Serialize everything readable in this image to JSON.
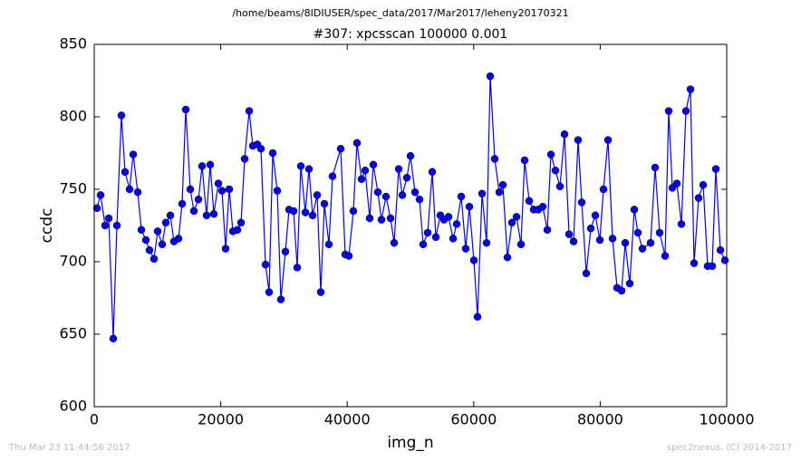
{
  "chart_data": {
    "type": "line",
    "suptitle": "/home/beams/8IDIUSER/spec_data/2017/Mar2017/leheny20170321",
    "title": "#307: xpcsscan 100000 0.001",
    "x_label": "img_n",
    "y_label": "ccdc",
    "footer_left": "Thu Mar 23 11:44:56 2017",
    "footer_right": "spec2nexus, (C) 2014-2017",
    "xlim": [
      0,
      100000
    ],
    "ylim": [
      600,
      850
    ],
    "xticks": [
      0,
      20000,
      40000,
      60000,
      80000,
      100000
    ],
    "yticks": [
      600,
      650,
      700,
      750,
      800,
      850
    ],
    "grid": false,
    "series": [
      {
        "name": "ccdc",
        "color": "#0000ff",
        "x": [
          430,
          1003,
          1719,
          2292,
          3009,
          3582,
          4298,
          4871,
          5587,
          6160,
          6877,
          7450,
          8166,
          8739,
          9456,
          10029,
          10745,
          11318,
          12034,
          12607,
          13324,
          13897,
          14470,
          15186,
          15759,
          16476,
          17049,
          17765,
          18338,
          18911,
          19628,
          20201,
          20774,
          21347,
          21920,
          22636,
          23209,
          23782,
          24499,
          25072,
          25788,
          26361,
          27077,
          27650,
          28223,
          28940,
          29513,
          30229,
          30802,
          31519,
          32092,
          32665,
          33381,
          33954,
          34527,
          35244,
          35817,
          36390,
          37106,
          37679,
          38968,
          39685,
          40258,
          40974,
          41547,
          42264,
          42837,
          43553,
          44126,
          44843,
          45416,
          46132,
          46848,
          47421,
          48138,
          48711,
          49428,
          50001,
          50717,
          51433,
          52006,
          52723,
          53439,
          54012,
          54729,
          55302,
          56018,
          56734,
          57307,
          58024,
          58740,
          59313,
          60030,
          60603,
          61319,
          62035,
          62608,
          63325,
          64041,
          64614,
          65331,
          66047,
          66763,
          67480,
          68053,
          68769,
          69486,
          70202,
          70918,
          71635,
          72208,
          72924,
          73641,
          74357,
          75073,
          75790,
          76506,
          77079,
          77796,
          78512,
          79228,
          79945,
          80518,
          81234,
          81950,
          82667,
          83383,
          83956,
          84673,
          85389,
          85962,
          86678,
          87968,
          88684,
          89401,
          90260,
          90833,
          91406,
          92123,
          92839,
          93556,
          94272,
          94845,
          95561,
          96278,
          96994,
          97710,
          98283,
          99000,
          99716
        ],
        "values": [
          737,
          746,
          725,
          730,
          647,
          725,
          801,
          762,
          750,
          774,
          748,
          722,
          715,
          708,
          702,
          721,
          712,
          727,
          732,
          714,
          716,
          740,
          805,
          750,
          735,
          743,
          766,
          732,
          767,
          733,
          754,
          749,
          709,
          750,
          721,
          722,
          727,
          771,
          804,
          780,
          781,
          778,
          698,
          679,
          775,
          749,
          674,
          707,
          736,
          735,
          696,
          766,
          734,
          764,
          732,
          746,
          679,
          740,
          712,
          759,
          778,
          705,
          704,
          735,
          782,
          757,
          763,
          730,
          767,
          748,
          729,
          745,
          730,
          713,
          764,
          746,
          758,
          773,
          748,
          743,
          712,
          720,
          762,
          717,
          732,
          729,
          731,
          716,
          726,
          745,
          709,
          738,
          701,
          662,
          747,
          713,
          828,
          771,
          748,
          753,
          703,
          727,
          731,
          712,
          770,
          742,
          736,
          736,
          738,
          722,
          774,
          763,
          752,
          788,
          719,
          714,
          784,
          741,
          692,
          723,
          732,
          715,
          750,
          784,
          716,
          682,
          680,
          713,
          685,
          736,
          720,
          709,
          713,
          765,
          720,
          704,
          804,
          751,
          754,
          726,
          804,
          819,
          699,
          744,
          753,
          697,
          697,
          764,
          708,
          701
        ]
      }
    ]
  }
}
